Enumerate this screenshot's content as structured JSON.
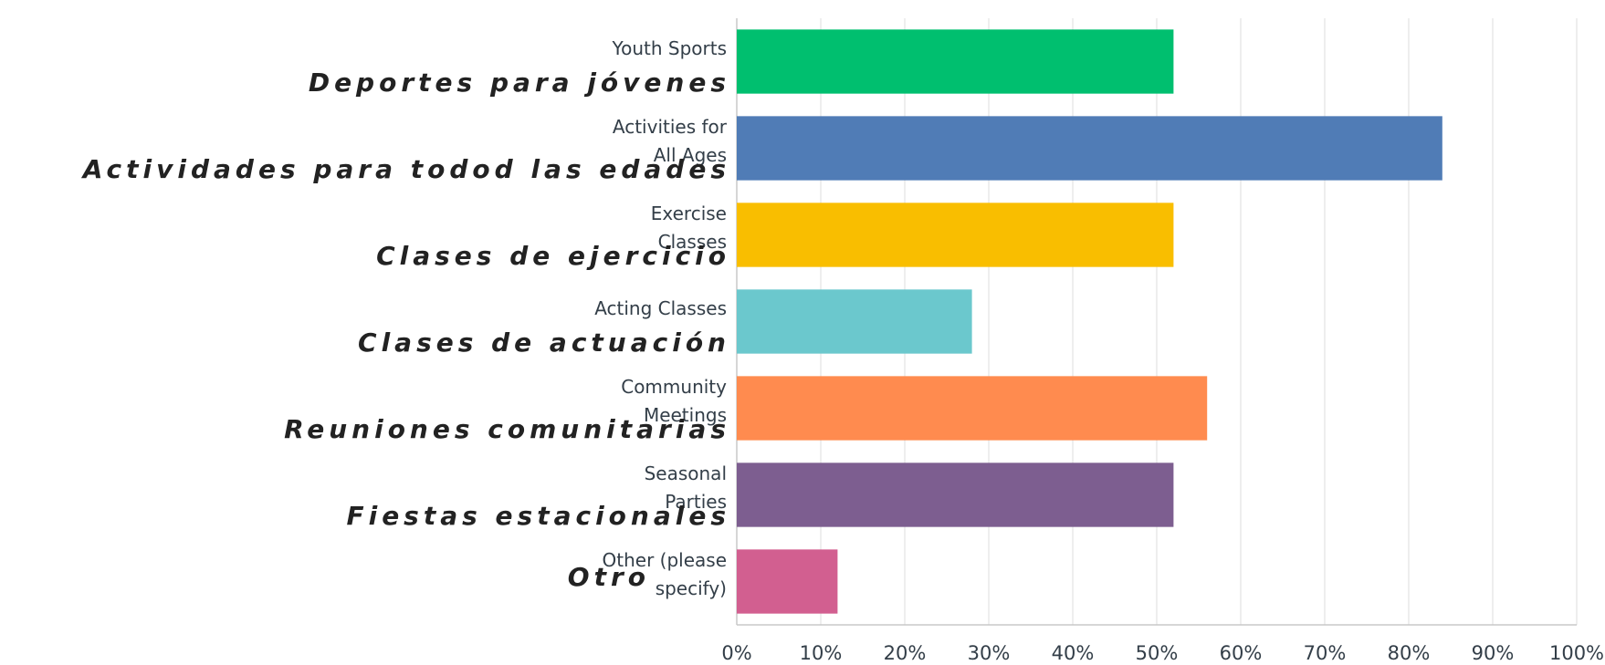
{
  "chart_data": {
    "type": "bar",
    "orientation": "horizontal",
    "categories": [
      "Youth Sports",
      "Activities for All Ages",
      "Exercise Classes",
      "Acting Classes",
      "Community Meetings",
      "Seasonal Parties",
      "Other (please specify)"
    ],
    "categories_es": [
      "Deportes para jóvenes",
      "Actividades para todod las edades",
      "Clases de ejercicio",
      "Clases de actuación",
      "Reuniones comunitarias",
      "Fiestas estacionales",
      "Otro"
    ],
    "values": [
      52,
      84,
      52,
      28,
      56,
      52,
      12
    ],
    "colors": [
      "#00bf6f",
      "#507cb6",
      "#f9be00",
      "#6bc8cd",
      "#ff8b4f",
      "#7d5e90",
      "#d25f90"
    ],
    "xlim": [
      0,
      100
    ],
    "xticks": [
      {
        "value": 0,
        "label": "0%"
      },
      {
        "value": 10,
        "label": "10%"
      },
      {
        "value": 20,
        "label": "20%"
      },
      {
        "value": 30,
        "label": "30%"
      },
      {
        "value": 40,
        "label": "40%"
      },
      {
        "value": 50,
        "label": "50%"
      },
      {
        "value": 60,
        "label": "60%"
      },
      {
        "value": 70,
        "label": "70%"
      },
      {
        "value": 80,
        "label": "80%"
      },
      {
        "value": 90,
        "label": "90%"
      },
      {
        "value": 100,
        "label": "100%"
      }
    ],
    "grid": true
  }
}
